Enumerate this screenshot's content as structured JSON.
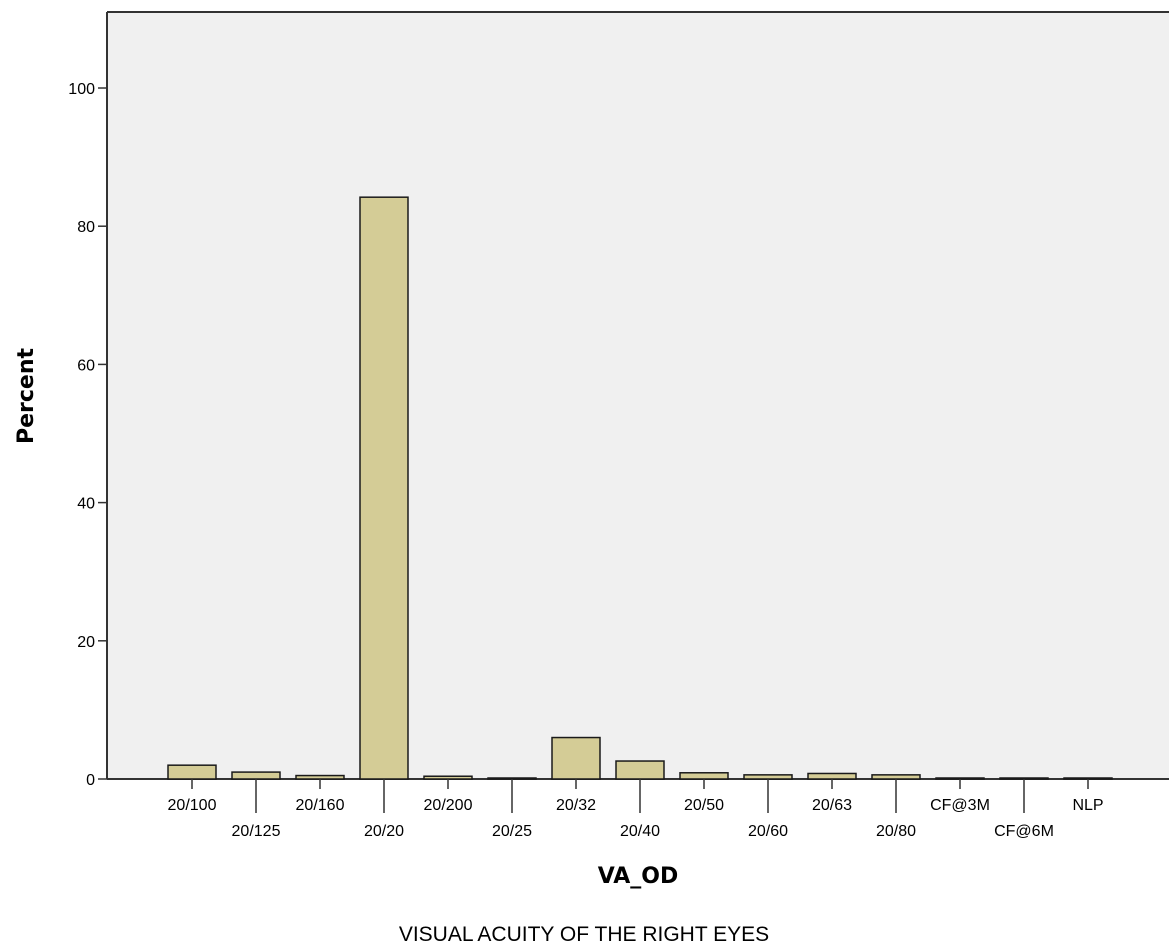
{
  "chart_data": {
    "type": "bar",
    "categories": [
      "20/100",
      "20/125",
      "20/160",
      "20/20",
      "20/200",
      "20/25",
      "20/32",
      "20/40",
      "20/50",
      "20/60",
      "20/63",
      "20/80",
      "CF@3M",
      "CF@6M",
      "NLP"
    ],
    "values": [
      2.0,
      1.0,
      0.5,
      84.2,
      0.4,
      0.1,
      6.0,
      2.6,
      0.9,
      0.6,
      0.8,
      0.6,
      0.1,
      0.1,
      0.1
    ],
    "xlabel": "VA_OD",
    "ylabel": "Percent",
    "caption": "VISUAL ACUITY OF THE RIGHT EYES",
    "ylim": [
      0,
      111
    ],
    "yticks": [
      0,
      20,
      40,
      60,
      80,
      100
    ],
    "grid": false,
    "colors": {
      "bar_fill": "#d4cc96",
      "bar_stroke": "#1a1a1a",
      "plot_background": "#f0f0f0",
      "axis": "#333333"
    }
  }
}
